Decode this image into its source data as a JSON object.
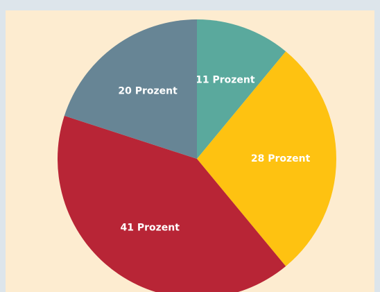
{
  "chart_data": {
    "type": "pie",
    "values": [
      11,
      28,
      41,
      20
    ],
    "value_labels": [
      "11 Prozent",
      "28 Prozent",
      "41 Prozent",
      "20 Prozent"
    ],
    "colors": [
      "#5aa99d",
      "#fec211",
      "#b82536",
      "#678595"
    ]
  }
}
